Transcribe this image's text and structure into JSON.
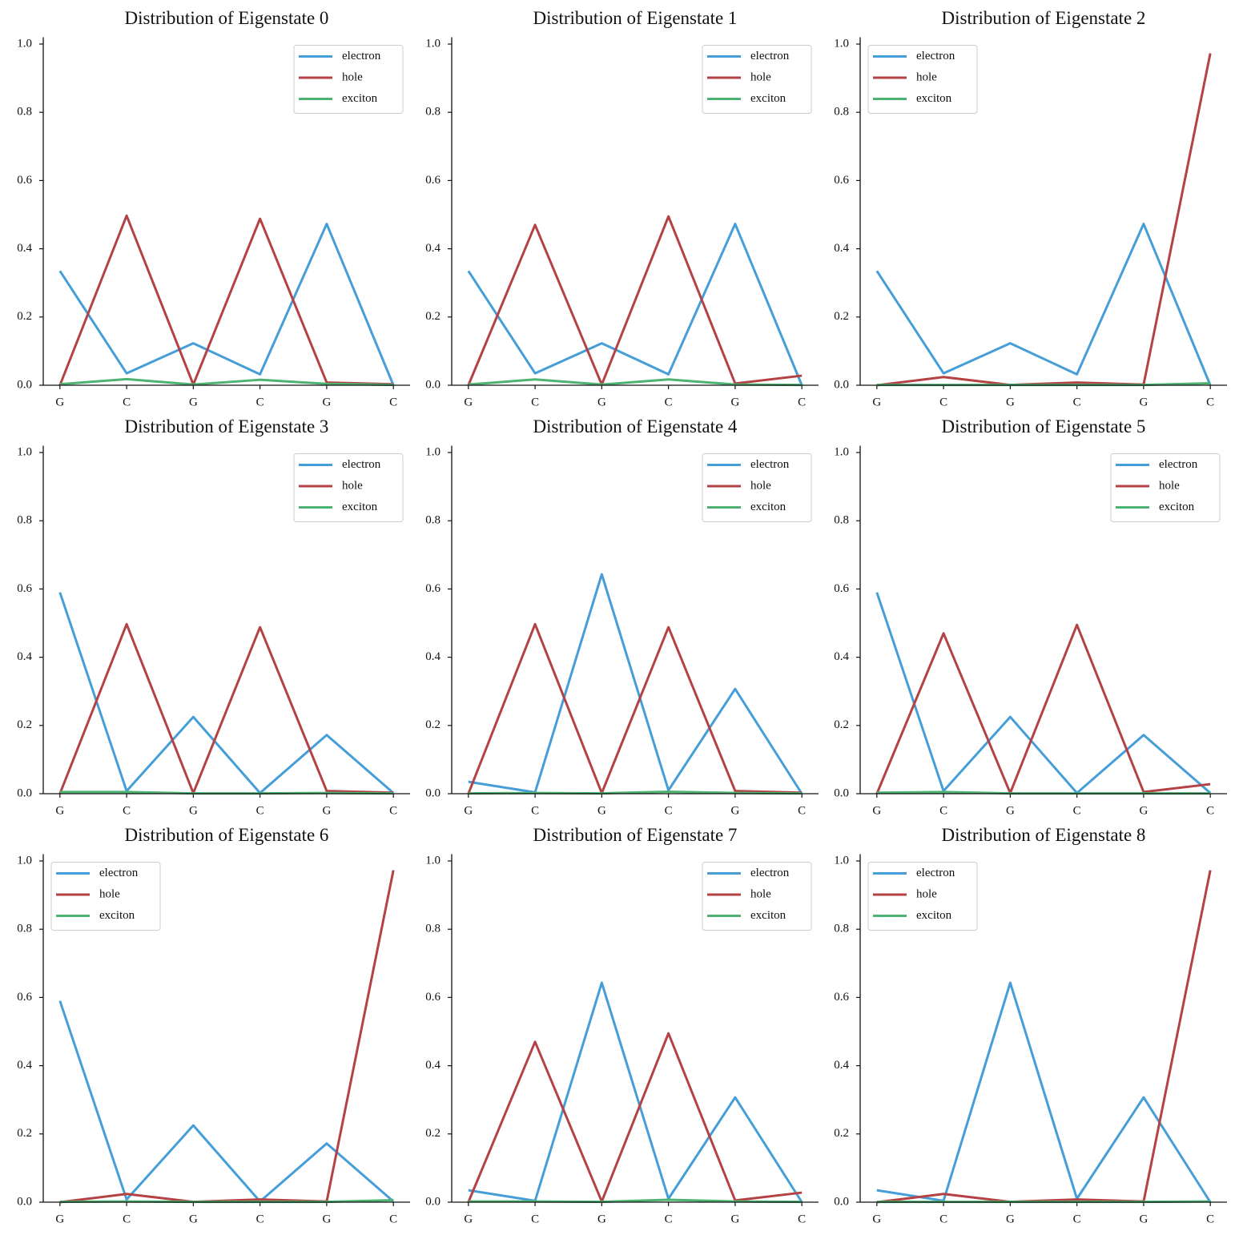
{
  "chart_data": [
    {
      "type": "line",
      "title": "Distribution of Eigenstate 0",
      "categories": [
        "G",
        "C",
        "G",
        "C",
        "G",
        "C"
      ],
      "series": [
        {
          "name": "electron",
          "color": "#459ed8",
          "values": [
            0.335,
            0.035,
            0.123,
            0.032,
            0.473,
            0.0
          ]
        },
        {
          "name": "hole",
          "color": "#b44244",
          "values": [
            0.0,
            0.497,
            0.002,
            0.488,
            0.008,
            0.003
          ]
        },
        {
          "name": "exciton",
          "color": "#4db372",
          "values": [
            0.003,
            0.018,
            0.002,
            0.016,
            0.004,
            0.001
          ]
        }
      ],
      "ylim": [
        0,
        1.02
      ],
      "yticks": [
        {
          "value": 0,
          "label": "0.0"
        },
        0.2,
        0.4,
        0.6,
        0.8,
        {
          "value": 1,
          "label": "1.0"
        }
      ],
      "legend": "upper right"
    },
    {
      "type": "line",
      "title": "Distribution of Eigenstate 1",
      "categories": [
        "G",
        "C",
        "G",
        "C",
        "G",
        "C"
      ],
      "series": [
        {
          "name": "electron",
          "color": "#459ed8",
          "values": [
            0.335,
            0.035,
            0.123,
            0.032,
            0.473,
            0.0
          ]
        },
        {
          "name": "hole",
          "color": "#b44244",
          "values": [
            0.0,
            0.47,
            0.002,
            0.495,
            0.005,
            0.028
          ]
        },
        {
          "name": "exciton",
          "color": "#4db372",
          "values": [
            0.002,
            0.017,
            0.002,
            0.017,
            0.002,
            0.001
          ]
        }
      ],
      "ylim": [
        0,
        1.02
      ],
      "yticks": [
        {
          "value": 0,
          "label": "0.0"
        },
        0.2,
        0.4,
        0.6,
        0.8,
        {
          "value": 1,
          "label": "1.0"
        }
      ],
      "legend": "upper right"
    },
    {
      "type": "line",
      "title": "Distribution of Eigenstate 2",
      "categories": [
        "G",
        "C",
        "G",
        "C",
        "G",
        "C"
      ],
      "series": [
        {
          "name": "electron",
          "color": "#459ed8",
          "values": [
            0.335,
            0.035,
            0.123,
            0.032,
            0.473,
            0.0
          ]
        },
        {
          "name": "hole",
          "color": "#b44244",
          "values": [
            0.0,
            0.024,
            0.001,
            0.008,
            0.002,
            0.973
          ]
        },
        {
          "name": "exciton",
          "color": "#4db372",
          "values": [
            0.001,
            0.001,
            0.001,
            0.001,
            0.001,
            0.006
          ]
        }
      ],
      "ylim": [
        0,
        1.02
      ],
      "yticks": [
        {
          "value": 0,
          "label": "0.0"
        },
        0.2,
        0.4,
        0.6,
        0.8,
        {
          "value": 1,
          "label": "1.0"
        }
      ],
      "legend": "upper left"
    },
    {
      "type": "line",
      "title": "Distribution of Eigenstate 3",
      "categories": [
        "G",
        "C",
        "G",
        "C",
        "G",
        "C"
      ],
      "series": [
        {
          "name": "electron",
          "color": "#459ed8",
          "values": [
            0.59,
            0.008,
            0.225,
            0.002,
            0.172,
            0.002
          ]
        },
        {
          "name": "hole",
          "color": "#b44244",
          "values": [
            0.0,
            0.497,
            0.002,
            0.488,
            0.008,
            0.003
          ]
        },
        {
          "name": "exciton",
          "color": "#4db372",
          "values": [
            0.005,
            0.005,
            0.001,
            0.001,
            0.002,
            0.001
          ]
        }
      ],
      "ylim": [
        0,
        1.02
      ],
      "yticks": [
        {
          "value": 0,
          "label": "0.0"
        },
        0.2,
        0.4,
        0.6,
        0.8,
        {
          "value": 1,
          "label": "1.0"
        }
      ],
      "legend": "upper right"
    },
    {
      "type": "line",
      "title": "Distribution of Eigenstate 4",
      "categories": [
        "G",
        "C",
        "G",
        "C",
        "G",
        "C"
      ],
      "series": [
        {
          "name": "electron",
          "color": "#459ed8",
          "values": [
            0.035,
            0.004,
            0.643,
            0.01,
            0.307,
            0.0
          ]
        },
        {
          "name": "hole",
          "color": "#b44244",
          "values": [
            0.0,
            0.497,
            0.002,
            0.488,
            0.008,
            0.003
          ]
        },
        {
          "name": "exciton",
          "color": "#4db372",
          "values": [
            0.001,
            0.002,
            0.001,
            0.006,
            0.002,
            0.001
          ]
        }
      ],
      "ylim": [
        0,
        1.02
      ],
      "yticks": [
        {
          "value": 0,
          "label": "0.0"
        },
        0.2,
        0.4,
        0.6,
        0.8,
        {
          "value": 1,
          "label": "1.0"
        }
      ],
      "legend": "upper right"
    },
    {
      "type": "line",
      "title": "Distribution of Eigenstate 5",
      "categories": [
        "G",
        "C",
        "G",
        "C",
        "G",
        "C"
      ],
      "series": [
        {
          "name": "electron",
          "color": "#459ed8",
          "values": [
            0.59,
            0.008,
            0.225,
            0.002,
            0.172,
            0.002
          ]
        },
        {
          "name": "hole",
          "color": "#b44244",
          "values": [
            0.0,
            0.47,
            0.002,
            0.495,
            0.005,
            0.028
          ]
        },
        {
          "name": "exciton",
          "color": "#4db372",
          "values": [
            0.003,
            0.005,
            0.001,
            0.001,
            0.001,
            0.001
          ]
        }
      ],
      "ylim": [
        0,
        1.02
      ],
      "yticks": [
        {
          "value": 0,
          "label": "0.0"
        },
        0.2,
        0.4,
        0.6,
        0.8,
        {
          "value": 1,
          "label": "1.0"
        }
      ],
      "legend": "upper right"
    },
    {
      "type": "line",
      "title": "Distribution of Eigenstate 6",
      "categories": [
        "G",
        "C",
        "G",
        "C",
        "G",
        "C"
      ],
      "series": [
        {
          "name": "electron",
          "color": "#459ed8",
          "values": [
            0.59,
            0.008,
            0.225,
            0.002,
            0.172,
            0.002
          ]
        },
        {
          "name": "hole",
          "color": "#b44244",
          "values": [
            0.0,
            0.024,
            0.001,
            0.008,
            0.002,
            0.973
          ]
        },
        {
          "name": "exciton",
          "color": "#4db372",
          "values": [
            0.001,
            0.002,
            0.001,
            0.001,
            0.001,
            0.006
          ]
        }
      ],
      "ylim": [
        0,
        1.02
      ],
      "yticks": [
        {
          "value": 0,
          "label": "0.0"
        },
        0.2,
        0.4,
        0.6,
        0.8,
        {
          "value": 1,
          "label": "1.0"
        }
      ],
      "legend": "upper left"
    },
    {
      "type": "line",
      "title": "Distribution of Eigenstate 7",
      "categories": [
        "G",
        "C",
        "G",
        "C",
        "G",
        "C"
      ],
      "series": [
        {
          "name": "electron",
          "color": "#459ed8",
          "values": [
            0.035,
            0.004,
            0.643,
            0.01,
            0.307,
            0.0
          ]
        },
        {
          "name": "hole",
          "color": "#b44244",
          "values": [
            0.0,
            0.47,
            0.002,
            0.495,
            0.005,
            0.028
          ]
        },
        {
          "name": "exciton",
          "color": "#4db372",
          "values": [
            0.002,
            0.002,
            0.001,
            0.007,
            0.002,
            0.001
          ]
        }
      ],
      "ylim": [
        0,
        1.02
      ],
      "yticks": [
        {
          "value": 0,
          "label": "0.0"
        },
        0.2,
        0.4,
        0.6,
        0.8,
        {
          "value": 1,
          "label": "1.0"
        }
      ],
      "legend": "upper right"
    },
    {
      "type": "line",
      "title": "Distribution of Eigenstate 8",
      "categories": [
        "G",
        "C",
        "G",
        "C",
        "G",
        "C"
      ],
      "series": [
        {
          "name": "electron",
          "color": "#459ed8",
          "values": [
            0.035,
            0.004,
            0.643,
            0.01,
            0.307,
            0.0
          ]
        },
        {
          "name": "hole",
          "color": "#b44244",
          "values": [
            0.0,
            0.024,
            0.001,
            0.008,
            0.002,
            0.973
          ]
        },
        {
          "name": "exciton",
          "color": "#4db372",
          "values": [
            0.001,
            0.001,
            0.001,
            0.001,
            0.001,
            0.002
          ]
        }
      ],
      "ylim": [
        0,
        1.02
      ],
      "yticks": [
        {
          "value": 0,
          "label": "0.0"
        },
        0.2,
        0.4,
        0.6,
        0.8,
        {
          "value": 1,
          "label": "1.0"
        }
      ],
      "legend": "upper left"
    }
  ]
}
